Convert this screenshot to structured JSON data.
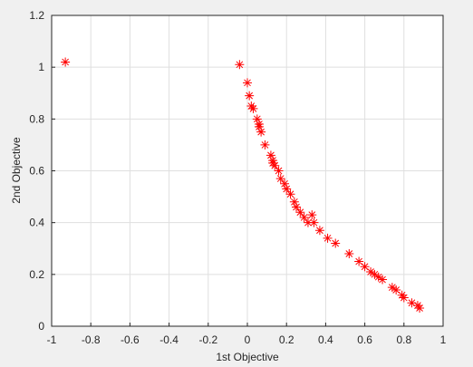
{
  "chart_data": {
    "type": "scatter",
    "xlabel": "1st Objective",
    "ylabel": "2nd Objective",
    "x": [
      -0.93,
      -0.04,
      0.0,
      0.01,
      0.02,
      0.03,
      0.05,
      0.06,
      0.06,
      0.07,
      0.09,
      0.12,
      0.13,
      0.13,
      0.14,
      0.16,
      0.17,
      0.19,
      0.2,
      0.22,
      0.24,
      0.25,
      0.27,
      0.29,
      0.31,
      0.33,
      0.34,
      0.37,
      0.41,
      0.45,
      0.52,
      0.57,
      0.6,
      0.63,
      0.65,
      0.67,
      0.69,
      0.74,
      0.76,
      0.79,
      0.8,
      0.84,
      0.87,
      0.88
    ],
    "values": [
      1.02,
      1.01,
      0.94,
      0.89,
      0.85,
      0.84,
      0.8,
      0.78,
      0.77,
      0.75,
      0.7,
      0.66,
      0.64,
      0.63,
      0.62,
      0.6,
      0.57,
      0.55,
      0.53,
      0.51,
      0.48,
      0.46,
      0.44,
      0.42,
      0.4,
      0.43,
      0.4,
      0.37,
      0.34,
      0.32,
      0.28,
      0.25,
      0.23,
      0.21,
      0.2,
      0.19,
      0.18,
      0.15,
      0.14,
      0.12,
      0.11,
      0.09,
      0.08,
      0.07
    ],
    "color": "#ff0000",
    "xlim": [
      -1,
      1
    ],
    "xticks": [
      -1,
      -0.8,
      -0.6,
      -0.4,
      -0.2,
      0,
      0.2,
      0.4,
      0.6,
      0.8,
      1
    ],
    "ylim": [
      0,
      1.2
    ],
    "yticks": [
      0,
      0.2,
      0.4,
      0.6,
      0.8,
      1,
      1.2
    ],
    "grid": true
  }
}
